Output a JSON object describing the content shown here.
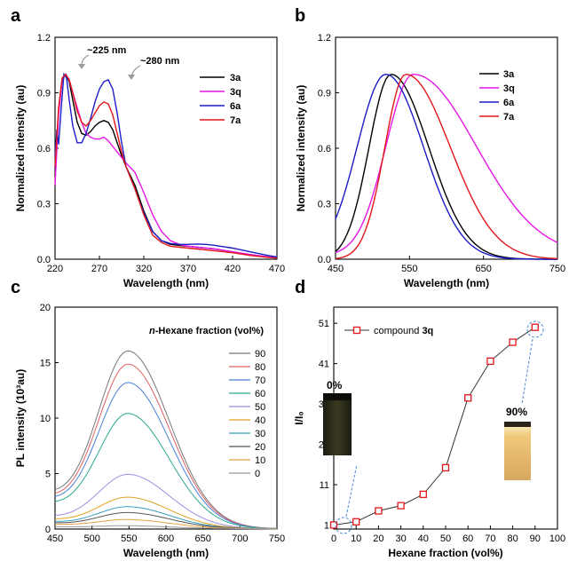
{
  "colors": {
    "black": "#000000",
    "magenta": "#e815e8",
    "blue": "#1c1cc8",
    "red": "#e3171b"
  },
  "panel_labels": {
    "a": "a",
    "b": "b",
    "c": "c",
    "d": "d"
  },
  "annotations": {
    "peak1": "~225 nm",
    "peak2": "~280 nm"
  },
  "insets": {
    "left_label": "0%",
    "right_label": "90%"
  },
  "chart_data": [
    {
      "id": "a",
      "type": "line",
      "xlabel": "Wavelength (nm)",
      "ylabel": "Normalized intensity (au)",
      "xlim": [
        220,
        470
      ],
      "ylim": [
        0,
        1.2
      ],
      "xticks": [
        220,
        270,
        320,
        370,
        420,
        470
      ],
      "yticks": [
        0.0,
        0.3,
        0.6,
        0.9,
        1.2
      ],
      "ytick_labels": [
        "0.0",
        "0.3",
        "0.6",
        "0.9",
        "1.2"
      ],
      "legend": "top-right",
      "series": [
        {
          "name": "3a",
          "color": "#000000",
          "x": [
            220,
            224,
            228,
            232,
            236,
            240,
            245,
            250,
            255,
            260,
            265,
            270,
            275,
            280,
            285,
            290,
            295,
            300,
            310,
            320,
            330,
            340,
            350,
            360,
            370,
            380,
            390,
            400,
            420,
            440,
            460,
            470
          ],
          "y": [
            0.45,
            0.8,
            0.97,
            1.0,
            0.96,
            0.86,
            0.74,
            0.68,
            0.67,
            0.69,
            0.72,
            0.74,
            0.75,
            0.74,
            0.7,
            0.63,
            0.56,
            0.5,
            0.4,
            0.26,
            0.15,
            0.1,
            0.08,
            0.075,
            0.07,
            0.065,
            0.06,
            0.055,
            0.04,
            0.025,
            0.012,
            0.008
          ]
        },
        {
          "name": "3q",
          "color": "#e815e8",
          "x": [
            220,
            224,
            228,
            232,
            236,
            240,
            245,
            250,
            255,
            260,
            265,
            270,
            275,
            280,
            285,
            290,
            295,
            300,
            310,
            320,
            330,
            340,
            350,
            360,
            370,
            380,
            390,
            400,
            420,
            440,
            460,
            470
          ],
          "y": [
            0.4,
            0.78,
            0.97,
            1.0,
            0.97,
            0.9,
            0.82,
            0.74,
            0.68,
            0.66,
            0.65,
            0.65,
            0.66,
            0.64,
            0.61,
            0.58,
            0.55,
            0.52,
            0.47,
            0.36,
            0.24,
            0.15,
            0.1,
            0.08,
            0.07,
            0.065,
            0.06,
            0.055,
            0.04,
            0.025,
            0.013,
            0.008
          ]
        },
        {
          "name": "6a",
          "color": "#1c1cc8",
          "x": [
            220,
            222,
            224,
            227,
            230,
            233,
            236,
            240,
            245,
            250,
            255,
            260,
            265,
            270,
            275,
            280,
            285,
            290,
            295,
            300,
            310,
            320,
            330,
            340,
            350,
            360,
            370,
            380,
            390,
            400,
            420,
            440,
            460,
            470
          ],
          "y": [
            0.55,
            0.7,
            0.62,
            0.82,
            1.0,
            0.98,
            0.86,
            0.72,
            0.63,
            0.63,
            0.68,
            0.76,
            0.85,
            0.92,
            0.96,
            0.97,
            0.92,
            0.79,
            0.63,
            0.5,
            0.38,
            0.25,
            0.15,
            0.1,
            0.085,
            0.08,
            0.08,
            0.082,
            0.08,
            0.075,
            0.06,
            0.04,
            0.02,
            0.012
          ]
        },
        {
          "name": "7a",
          "color": "#e3171b",
          "x": [
            220,
            224,
            228,
            232,
            236,
            240,
            245,
            250,
            255,
            260,
            265,
            270,
            275,
            280,
            285,
            290,
            295,
            300,
            310,
            320,
            330,
            340,
            350,
            360,
            370,
            380,
            390,
            400,
            420,
            440,
            460,
            470
          ],
          "y": [
            0.5,
            0.82,
            0.98,
            1.0,
            0.97,
            0.9,
            0.8,
            0.74,
            0.72,
            0.75,
            0.79,
            0.83,
            0.85,
            0.84,
            0.78,
            0.68,
            0.58,
            0.5,
            0.38,
            0.24,
            0.13,
            0.09,
            0.07,
            0.065,
            0.06,
            0.055,
            0.05,
            0.045,
            0.035,
            0.02,
            0.01,
            0.006
          ]
        }
      ]
    },
    {
      "id": "b",
      "type": "line",
      "xlabel": "Wavelength (nm)",
      "ylabel": "Normalized intensity (au)",
      "xlim": [
        450,
        750
      ],
      "ylim": [
        0,
        1.2
      ],
      "xticks": [
        450,
        550,
        650,
        750
      ],
      "yticks": [
        0.0,
        0.3,
        0.6,
        0.9,
        1.2
      ],
      "ytick_labels": [
        "0.0",
        "0.3",
        "0.6",
        "0.9",
        "1.2"
      ],
      "legend": "top-right",
      "series": [
        {
          "name": "3a",
          "color": "#000000",
          "peak": 525,
          "wl": 42,
          "wr": 72,
          "base": 0
        },
        {
          "name": "3q",
          "color": "#e815e8",
          "peak": 555,
          "wl": 52,
          "wr": 120,
          "base": 0.02
        },
        {
          "name": "6a",
          "color": "#1c1cc8",
          "peak": 518,
          "wl": 55,
          "wr": 72,
          "base": 0
        },
        {
          "name": "7a",
          "color": "#e3171b",
          "peak": 545,
          "wl": 40,
          "wr": 85,
          "base": 0
        }
      ]
    },
    {
      "id": "c",
      "type": "line",
      "xlabel": "Wavelength (nm)",
      "ylabel": "PL intensity (10³au)",
      "xlim": [
        450,
        750
      ],
      "ylim": [
        0,
        20
      ],
      "xticks": [
        450,
        500,
        550,
        600,
        650,
        700,
        750
      ],
      "yticks": [
        0,
        5,
        10,
        15,
        20
      ],
      "legend_title_prefix": "n",
      "legend_title": "-Hexane fraction (vol%)",
      "legend": "right",
      "peak": 550,
      "wl": 58,
      "wr": 78,
      "base_end": 0.3,
      "series": [
        {
          "name": "90",
          "color": "#777777",
          "amp": 15.2,
          "base_start": 2.8
        },
        {
          "name": "80",
          "color": "#e06060",
          "amp": 14.1,
          "base_start": 2.5
        },
        {
          "name": "70",
          "color": "#4a7fd8",
          "amp": 12.5,
          "base_start": 2.3
        },
        {
          "name": "60",
          "color": "#29a88f",
          "amp": 9.8,
          "base_start": 2.0
        },
        {
          "name": "50",
          "color": "#a58be0",
          "amp": 4.6,
          "base_start": 1.0
        },
        {
          "name": "40",
          "color": "#e0a020",
          "amp": 2.6,
          "base_start": 0.8
        },
        {
          "name": "30",
          "color": "#3aa0c0",
          "amp": 1.8,
          "base_start": 0.6
        },
        {
          "name": "20",
          "color": "#555555",
          "amp": 1.3,
          "base_start": 0.5
        },
        {
          "name": "10",
          "color": "#e8a040",
          "amp": 0.7,
          "base_start": 0.4
        },
        {
          "name": "0",
          "color": "#999999",
          "amp": 0.2,
          "base_start": 0.2
        }
      ]
    },
    {
      "id": "d",
      "type": "scatter",
      "xlabel": "Hexane fraction (vol%)",
      "ylabel": "I/I₀",
      "xlim": [
        0,
        100
      ],
      "ylim": [
        0,
        55
      ],
      "xticks": [
        0,
        10,
        20,
        30,
        40,
        50,
        60,
        70,
        80,
        90,
        100
      ],
      "yticks": [
        1,
        11,
        21,
        31,
        41,
        51
      ],
      "legend": "top-left",
      "series": [
        {
          "name": "compound 3q",
          "color": "#e3171b",
          "x": [
            0,
            10,
            20,
            30,
            40,
            50,
            60,
            70,
            80,
            90
          ],
          "y": [
            1,
            1.8,
            4.5,
            5.8,
            8.6,
            15.2,
            32.5,
            41.6,
            46.3,
            50
          ]
        }
      ]
    }
  ]
}
